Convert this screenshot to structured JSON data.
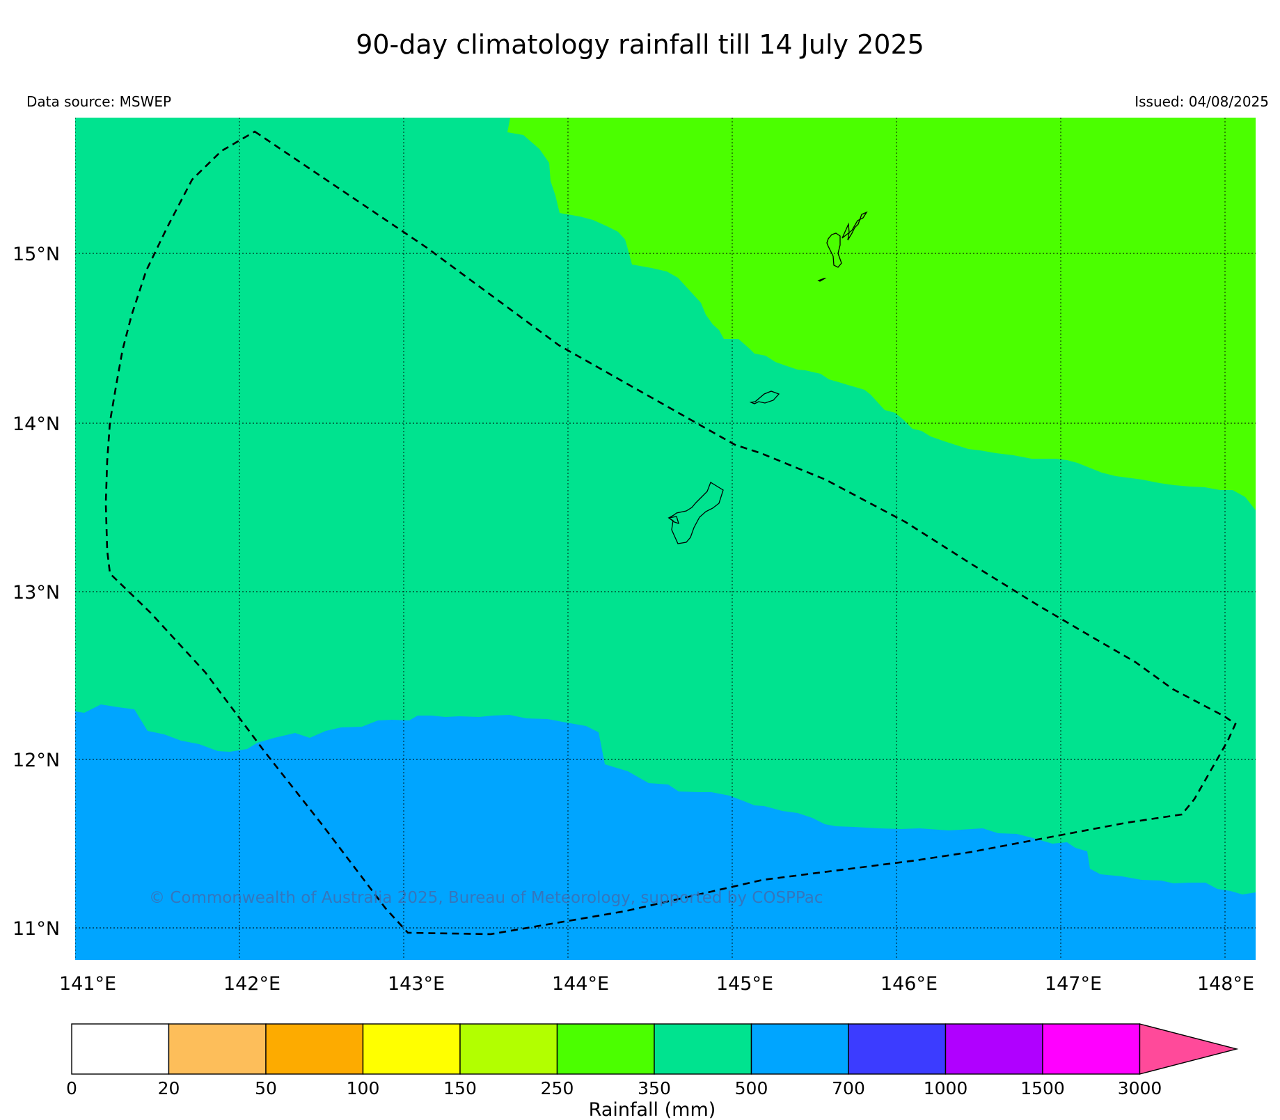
{
  "title": "90-day climatology rainfall till 14 July 2025",
  "data_source": "Data source: MSWEP",
  "issued": "Issued: 04/08/2025",
  "copyright": "© Commonwealth of Australia 2025, Bureau of Meteorology, supported by COSPPac",
  "longitude_labels": [
    "141°E",
    "142°E",
    "143°E",
    "144°E",
    "145°E",
    "146°E",
    "147°E",
    "148°E"
  ],
  "latitude_labels": [
    "15°N",
    "14°N",
    "13°N",
    "12°N",
    "11°N"
  ],
  "legend": {
    "label": "Rainfall (mm)",
    "ticks": [
      "0",
      "20",
      "50",
      "100",
      "150",
      "250",
      "350",
      "500",
      "700",
      "1000",
      "1500",
      "3000"
    ],
    "colors": [
      "#ffffff",
      "#fdbe5a",
      "#fdab00",
      "#ffff00",
      "#b2ff00",
      "#4bff00",
      "#00e38f",
      "#00a5ff",
      "#3c3cff",
      "#b000ff",
      "#ff00ff",
      "#ff4a9a"
    ]
  },
  "map_colors": {
    "band_350_500": "#00e38f",
    "band_250_350": "#4bff00",
    "band_500_700": "#00a5ff"
  }
}
